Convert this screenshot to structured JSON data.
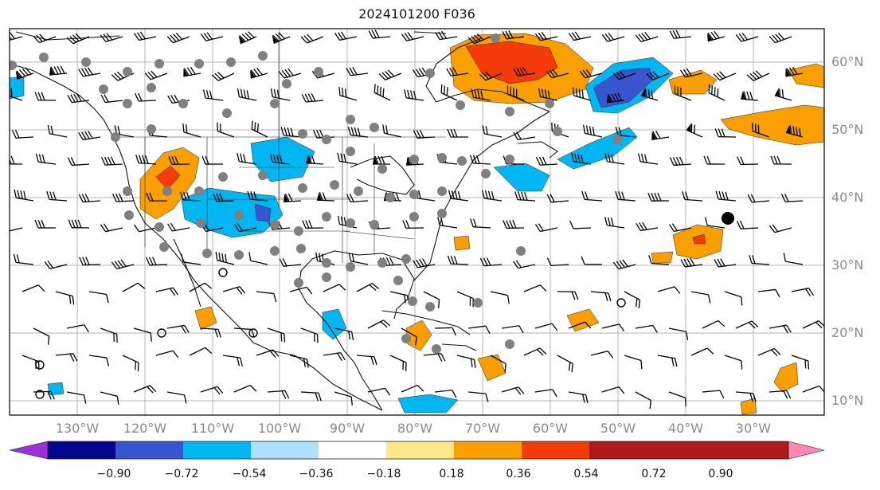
{
  "title": "2024101200 F036",
  "map": {
    "latitude_labels": [
      "60°N",
      "50°N",
      "40°N",
      "30°N",
      "20°N",
      "10°N"
    ],
    "longitude_labels": [
      "130°W",
      "120°W",
      "110°W",
      "100°W",
      "90°W",
      "80°W",
      "70°W",
      "60°W",
      "50°W",
      "40°W",
      "30°W"
    ]
  },
  "colorbar": {
    "tick_labels": [
      "−0.90",
      "−0.72",
      "−0.54",
      "−0.36",
      "−0.18",
      "0.18",
      "0.36",
      "0.54",
      "0.72",
      "0.90"
    ],
    "colors": [
      "#9b30d9",
      "#05058f",
      "#3a55d0",
      "#00b7f4",
      "#aee0fb",
      "#ffffff",
      "#fde789",
      "#f9a000",
      "#f53b0a",
      "#b0191e",
      "#ff88b0"
    ]
  }
}
